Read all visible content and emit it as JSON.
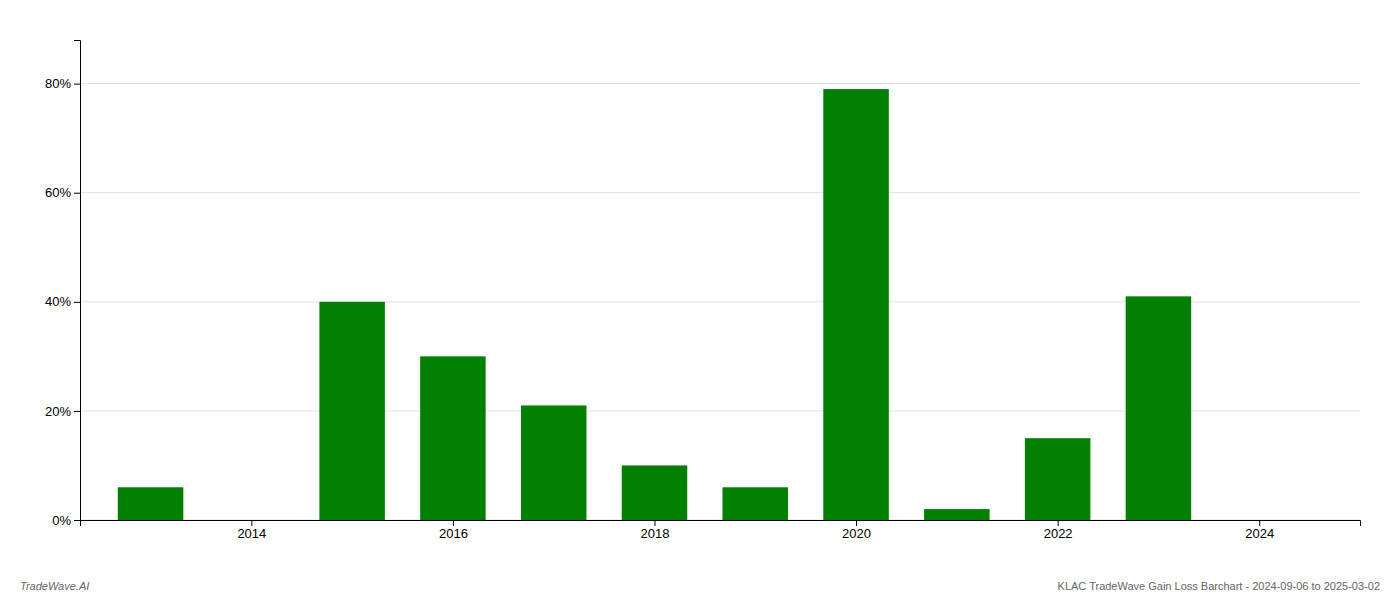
{
  "chart_data": {
    "type": "bar",
    "x": [
      2013,
      2015,
      2016,
      2017,
      2018,
      2019,
      2020,
      2021,
      2022,
      2023
    ],
    "values": [
      0.06,
      0.4,
      0.3,
      0.21,
      0.1,
      0.06,
      0.79,
      0.02,
      0.15,
      0.41
    ],
    "color": "#008000",
    "xlim": [
      2012.3,
      2025.0
    ],
    "xticks": [
      2014,
      2016,
      2018,
      2020,
      2022,
      2024
    ],
    "ylim": [
      0,
      0.88
    ],
    "yticks": [
      {
        "value": 0.0,
        "label": "0%"
      },
      {
        "value": 0.2,
        "label": "20%"
      },
      {
        "value": 0.4,
        "label": "40%"
      },
      {
        "value": 0.6,
        "label": "60%"
      },
      {
        "value": 0.8,
        "label": "80%"
      }
    ],
    "grid": true,
    "annotations": [
      "TradeWave.AI",
      "KLAC TradeWave Gain Loss Barchart - 2024-09-06 to 2025-03-02"
    ]
  }
}
